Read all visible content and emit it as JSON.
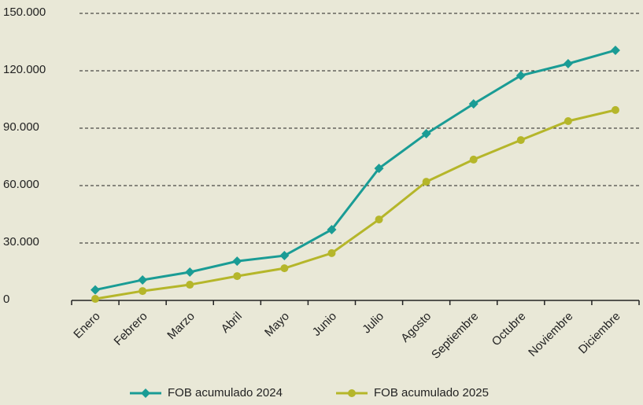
{
  "chart_data": {
    "type": "line",
    "categories": [
      "Enero",
      "Febrero",
      "Marzo",
      "Abril",
      "Mayo",
      "Junio",
      "Julio",
      "Agosto",
      "Septiembre",
      "Octubre",
      "Noviembre",
      "Diciembre"
    ],
    "series": [
      {
        "name": "FOB acumulado 2024",
        "color": "#1a9c95",
        "marker": "diamond",
        "values": [
          5500,
          10700,
          14800,
          20500,
          23400,
          37000,
          69000,
          87100,
          102700,
          117500,
          123700,
          130700
        ]
      },
      {
        "name": "FOB acumulado 2025",
        "color": "#b5b62a",
        "marker": "circle",
        "values": [
          800,
          4900,
          8200,
          12700,
          16800,
          24700,
          42300,
          62000,
          73600,
          83800,
          93700,
          99500
        ]
      }
    ],
    "ylim": [
      0,
      150000
    ],
    "yticks": [
      0,
      {
        "value": 30000,
        "label": "30.000"
      },
      {
        "value": 60000,
        "label": "60.000"
      },
      {
        "value": 90000,
        "label": "90.000"
      },
      {
        "value": 120000,
        "label": "120.000"
      },
      {
        "value": 150000,
        "label": "150.000"
      }
    ],
    "grid": true,
    "legend": "bottom"
  }
}
